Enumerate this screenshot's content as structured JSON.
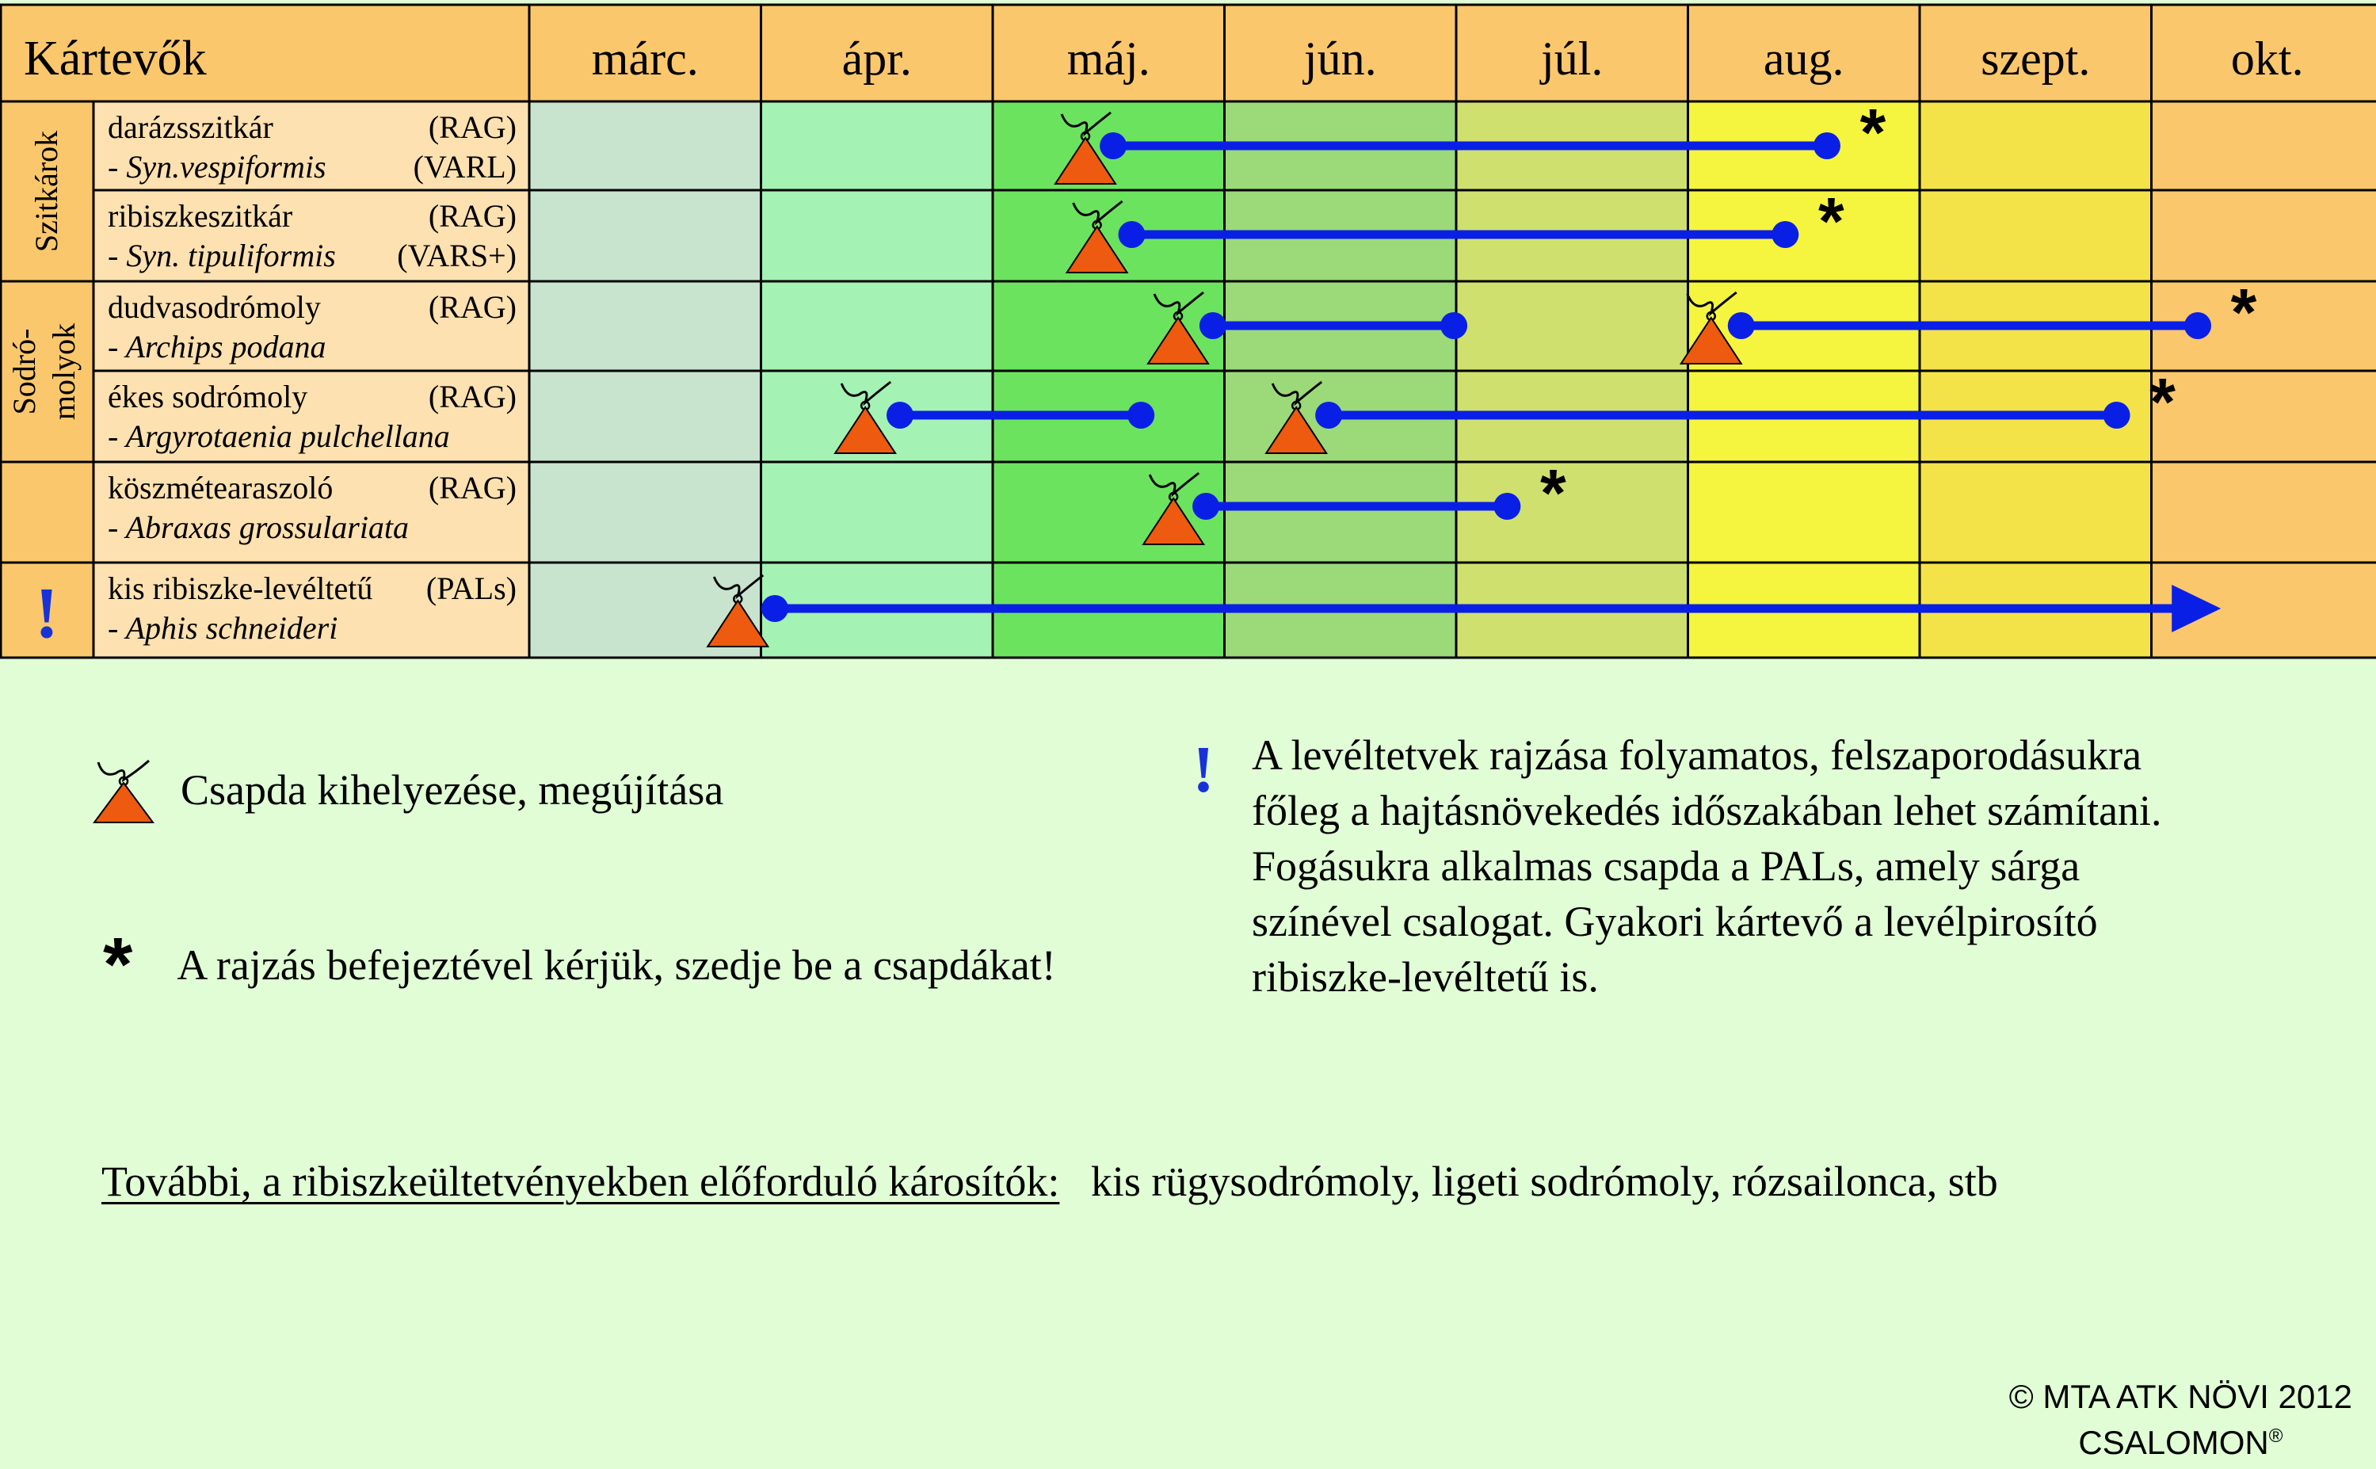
{
  "header": {
    "title": "Kártevők"
  },
  "months": [
    "márc.",
    "ápr.",
    "máj.",
    "jún.",
    "júl.",
    "aug.",
    "szept.",
    "okt."
  ],
  "month_colors": [
    "#c8e4cf",
    "#a4f2b4",
    "#6ce35f",
    "#9cd979",
    "#cfe06f",
    "#f5f43f",
    "#f3e349",
    "#fac76c"
  ],
  "header_color": "#fac76c",
  "label_bg": "#fde1b0",
  "group_bg": "#fac76c",
  "groups": [
    {
      "label": "Szitkárok"
    },
    {
      "label_lines": [
        "Sodró-",
        "molyok"
      ]
    },
    {
      "label": ""
    },
    {
      "label": "!"
    }
  ],
  "pests": [
    {
      "name": "darázsszitkár",
      "trap1": "(RAG)",
      "latin": "- Syn.vespiformis",
      "trap2": "(VARL)",
      "star": "*"
    },
    {
      "name": "ribiszkeszitkár",
      "trap1": "(RAG)",
      "latin": "- Syn. tipuliformis",
      "trap2": "(VARS+)",
      "star": "*"
    },
    {
      "name": "dudvasodrómoly",
      "trap1": "(RAG)",
      "latin": "- Archips podana",
      "trap2": "",
      "star": "*"
    },
    {
      "name": "ékes sodrómoly",
      "trap1": "(RAG)",
      "latin": "- Argyrotaenia pulchellana",
      "trap2": "",
      "star": "*"
    },
    {
      "name": "köszmétearaszoló",
      "trap1": "(RAG)",
      "latin": "- Abraxas grossulariata",
      "trap2": "",
      "star": "*"
    },
    {
      "name": "kis ribiszke-levéltetű",
      "trap1": "(PALs)",
      "latin": "- Aphis schneideri",
      "trap2": "",
      "star": ""
    }
  ],
  "chart_data": {
    "type": "gantt",
    "time_axis": [
      "márc.",
      "ápr.",
      "máj.",
      "jún.",
      "júl.",
      "aug.",
      "szept.",
      "okt."
    ],
    "note": "Times are month positions: 0 = start of márc., 8 = end of okt.",
    "periods": [
      {
        "pest": "darázsszitkár",
        "trap_at": 2.4,
        "start": 2.52,
        "end": 5.6,
        "star": true
      },
      {
        "pest": "ribiszkeszitkár",
        "trap_at": 2.45,
        "start": 2.6,
        "end": 5.42,
        "star": true
      },
      {
        "pest": "dudvasodrómoly",
        "trap_at": 2.8,
        "start": 2.95,
        "end": 3.99,
        "star": false
      },
      {
        "pest": "dudvasodrómoly",
        "trap_at": 5.1,
        "start": 5.23,
        "end": 7.2,
        "star": true
      },
      {
        "pest": "ékes sodrómoly",
        "trap_at": 1.45,
        "start": 1.6,
        "end": 2.64,
        "star": false
      },
      {
        "pest": "ékes sodrómoly",
        "trap_at": 3.31,
        "start": 3.45,
        "end": 6.85,
        "star": true
      },
      {
        "pest": "köszmétearaszoló",
        "trap_at": 2.78,
        "start": 2.92,
        "end": 4.22,
        "star": true
      },
      {
        "pest": "kis ribiszke-levéltetű",
        "trap_at": 0.9,
        "start": 1.06,
        "end": 7.3,
        "star": false,
        "arrow": true
      }
    ],
    "colors": {
      "bar": "#0a1fe6",
      "trap": "#ee5a10"
    }
  },
  "legend": {
    "trap_text": "Csapda kihelyezése, megújítása",
    "star_symbol": "*",
    "star_text": "A rajzás befejeztével kérjük, szedje be a csapdákat!"
  },
  "note": {
    "symbol": "!",
    "text": "A levéltetvek rajzása folyamatos, felszaporodásukra\nfőleg a hajtásnövekedés időszakában lehet számítani.\nFogásukra alkalmas csapda a PALs, amely sárga\nszínével csalogat.  Gyakori kártevő a levélpirosító\nribiszke-levéltetű is."
  },
  "others": {
    "lead": "További, a ribiszkeültetvényekben előforduló károsítók:",
    "list": "kis rügysodrómoly, ligeti sodrómoly, rózsailonca, stb"
  },
  "copyright": {
    "line1": "© MTA ATK NÖVI 2012",
    "line2": "CSALOMON",
    "reg": "®"
  }
}
